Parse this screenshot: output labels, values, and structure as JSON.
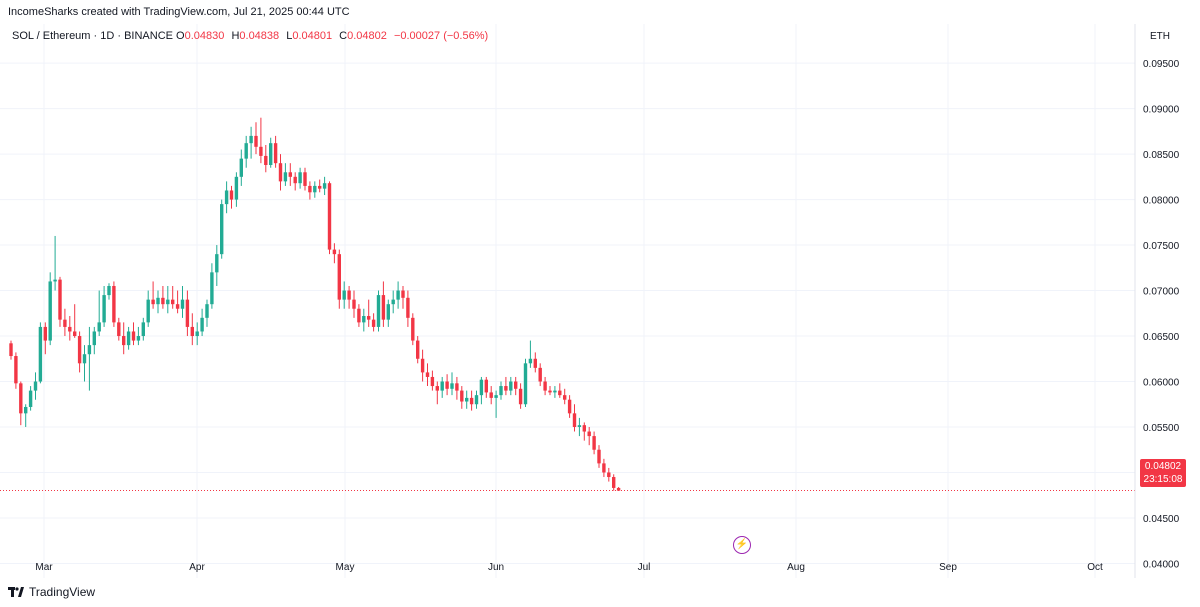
{
  "attribution": "IncomeSharks created with TradingView.com, Jul 21, 2025 00:44 UTC",
  "legend": {
    "symbol": "SOL / Ethereum · 1D · BINANCE",
    "open_key": "O",
    "open": "0.04830",
    "high_key": "H",
    "high": "0.04838",
    "low_key": "L",
    "low": "0.04801",
    "close_key": "C",
    "close": "0.04802",
    "change": "−0.00027 (−0.56%)"
  },
  "currency": "ETH",
  "price_tag": {
    "price": "0.04802",
    "countdown": "23:15:08"
  },
  "brand": "TradingView",
  "colors": {
    "up": "#22ab94",
    "down": "#f23645",
    "grid": "#f0f3fa",
    "event": "#9c27b0"
  },
  "chart_data": {
    "type": "candlestick",
    "y_ticks": [
      "0.09500",
      "0.09000",
      "0.08500",
      "0.08000",
      "0.07500",
      "0.07000",
      "0.06500",
      "0.06000",
      "0.05500",
      "0.05000",
      "0.04500",
      "0.04000"
    ],
    "x_ticks": [
      "Mar",
      "Apr",
      "May",
      "Jun",
      "Jul",
      "Aug",
      "Sep",
      "Oct"
    ],
    "ylim": [
      0.0384,
      0.0993
    ],
    "last_price": 0.04802,
    "candles": [
      [
        0.0642,
        0.0645,
        0.0624,
        0.0628
      ],
      [
        0.0628,
        0.0632,
        0.0592,
        0.0598
      ],
      [
        0.0598,
        0.06,
        0.0552,
        0.0565
      ],
      [
        0.0565,
        0.0575,
        0.055,
        0.0572
      ],
      [
        0.0572,
        0.0595,
        0.0568,
        0.059
      ],
      [
        0.059,
        0.061,
        0.058,
        0.06
      ],
      [
        0.06,
        0.0665,
        0.0598,
        0.066
      ],
      [
        0.066,
        0.0665,
        0.063,
        0.0645
      ],
      [
        0.0645,
        0.072,
        0.064,
        0.071
      ],
      [
        0.071,
        0.076,
        0.07,
        0.0712
      ],
      [
        0.0712,
        0.0715,
        0.066,
        0.0668
      ],
      [
        0.0668,
        0.068,
        0.065,
        0.066
      ],
      [
        0.066,
        0.0672,
        0.0645,
        0.0655
      ],
      [
        0.0655,
        0.0685,
        0.0648,
        0.065
      ],
      [
        0.065,
        0.0655,
        0.061,
        0.062
      ],
      [
        0.062,
        0.064,
        0.06,
        0.063
      ],
      [
        0.063,
        0.066,
        0.059,
        0.064
      ],
      [
        0.064,
        0.066,
        0.063,
        0.0655
      ],
      [
        0.0655,
        0.07,
        0.065,
        0.0665
      ],
      [
        0.0665,
        0.0705,
        0.066,
        0.0695
      ],
      [
        0.0695,
        0.0708,
        0.069,
        0.0705
      ],
      [
        0.0705,
        0.071,
        0.066,
        0.0665
      ],
      [
        0.0665,
        0.067,
        0.0645,
        0.065
      ],
      [
        0.065,
        0.0665,
        0.063,
        0.064
      ],
      [
        0.064,
        0.066,
        0.0635,
        0.0655
      ],
      [
        0.0655,
        0.0665,
        0.064,
        0.0645
      ],
      [
        0.0645,
        0.066,
        0.064,
        0.065
      ],
      [
        0.065,
        0.067,
        0.0645,
        0.0665
      ],
      [
        0.0665,
        0.07,
        0.066,
        0.069
      ],
      [
        0.069,
        0.071,
        0.068,
        0.0685
      ],
      [
        0.0685,
        0.07,
        0.0675,
        0.0692
      ],
      [
        0.0692,
        0.0705,
        0.068,
        0.0685
      ],
      [
        0.0685,
        0.0705,
        0.0675,
        0.069
      ],
      [
        0.069,
        0.0705,
        0.068,
        0.0685
      ],
      [
        0.0685,
        0.07,
        0.0675,
        0.068
      ],
      [
        0.068,
        0.0705,
        0.067,
        0.069
      ],
      [
        0.069,
        0.07,
        0.065,
        0.066
      ],
      [
        0.066,
        0.0675,
        0.064,
        0.065
      ],
      [
        0.065,
        0.0665,
        0.064,
        0.0655
      ],
      [
        0.0655,
        0.068,
        0.065,
        0.067
      ],
      [
        0.067,
        0.069,
        0.066,
        0.0685
      ],
      [
        0.0685,
        0.073,
        0.068,
        0.072
      ],
      [
        0.072,
        0.075,
        0.0705,
        0.074
      ],
      [
        0.074,
        0.08,
        0.0735,
        0.0795
      ],
      [
        0.0795,
        0.082,
        0.0785,
        0.081
      ],
      [
        0.081,
        0.0815,
        0.079,
        0.08
      ],
      [
        0.08,
        0.083,
        0.0792,
        0.0825
      ],
      [
        0.0825,
        0.0855,
        0.0815,
        0.0845
      ],
      [
        0.0845,
        0.087,
        0.0835,
        0.0862
      ],
      [
        0.0862,
        0.088,
        0.0845,
        0.087
      ],
      [
        0.087,
        0.0885,
        0.085,
        0.0858
      ],
      [
        0.0858,
        0.089,
        0.084,
        0.0848
      ],
      [
        0.0848,
        0.086,
        0.083,
        0.0838
      ],
      [
        0.0838,
        0.0868,
        0.0835,
        0.0862
      ],
      [
        0.0862,
        0.087,
        0.0835,
        0.084
      ],
      [
        0.084,
        0.085,
        0.081,
        0.082
      ],
      [
        0.082,
        0.084,
        0.0815,
        0.083
      ],
      [
        0.083,
        0.084,
        0.0815,
        0.0825
      ],
      [
        0.0825,
        0.083,
        0.081,
        0.0818
      ],
      [
        0.0818,
        0.0835,
        0.0812,
        0.083
      ],
      [
        0.083,
        0.0835,
        0.081,
        0.0815
      ],
      [
        0.0815,
        0.082,
        0.08,
        0.0808
      ],
      [
        0.0808,
        0.082,
        0.0802,
        0.0815
      ],
      [
        0.0815,
        0.0822,
        0.0808,
        0.0812
      ],
      [
        0.0812,
        0.0825,
        0.0805,
        0.0818
      ],
      [
        0.0818,
        0.082,
        0.074,
        0.0745
      ],
      [
        0.0745,
        0.0752,
        0.073,
        0.074
      ],
      [
        0.074,
        0.0745,
        0.068,
        0.069
      ],
      [
        0.069,
        0.071,
        0.068,
        0.07
      ],
      [
        0.07,
        0.0705,
        0.068,
        0.069
      ],
      [
        0.069,
        0.07,
        0.067,
        0.068
      ],
      [
        0.068,
        0.0685,
        0.066,
        0.0665
      ],
      [
        0.0665,
        0.068,
        0.0655,
        0.0672
      ],
      [
        0.0672,
        0.069,
        0.066,
        0.0668
      ],
      [
        0.0668,
        0.0675,
        0.0655,
        0.066
      ],
      [
        0.066,
        0.07,
        0.0655,
        0.0695
      ],
      [
        0.0695,
        0.071,
        0.066,
        0.0668
      ],
      [
        0.0668,
        0.069,
        0.066,
        0.0685
      ],
      [
        0.0685,
        0.07,
        0.0675,
        0.069
      ],
      [
        0.069,
        0.071,
        0.068,
        0.07
      ],
      [
        0.07,
        0.0705,
        0.068,
        0.0692
      ],
      [
        0.0692,
        0.07,
        0.066,
        0.067
      ],
      [
        0.067,
        0.0675,
        0.064,
        0.0645
      ],
      [
        0.0645,
        0.065,
        0.062,
        0.0625
      ],
      [
        0.0625,
        0.0635,
        0.06,
        0.061
      ],
      [
        0.061,
        0.062,
        0.0595,
        0.0605
      ],
      [
        0.0605,
        0.0612,
        0.059,
        0.0595
      ],
      [
        0.0595,
        0.06,
        0.0575,
        0.059
      ],
      [
        0.059,
        0.0605,
        0.0582,
        0.06
      ],
      [
        0.06,
        0.0608,
        0.0585,
        0.0592
      ],
      [
        0.0592,
        0.061,
        0.0585,
        0.0598
      ],
      [
        0.0598,
        0.0605,
        0.058,
        0.059
      ],
      [
        0.059,
        0.0595,
        0.057,
        0.0578
      ],
      [
        0.0578,
        0.059,
        0.057,
        0.0582
      ],
      [
        0.0582,
        0.059,
        0.0568,
        0.0575
      ],
      [
        0.0575,
        0.059,
        0.057,
        0.0585
      ],
      [
        0.0585,
        0.0605,
        0.0575,
        0.0602
      ],
      [
        0.0602,
        0.0605,
        0.0582,
        0.0588
      ],
      [
        0.0588,
        0.0595,
        0.0575,
        0.0582
      ],
      [
        0.0582,
        0.059,
        0.056,
        0.0585
      ],
      [
        0.0585,
        0.06,
        0.058,
        0.0595
      ],
      [
        0.0595,
        0.0605,
        0.0585,
        0.059
      ],
      [
        0.059,
        0.0605,
        0.0585,
        0.06
      ],
      [
        0.06,
        0.0605,
        0.0585,
        0.0592
      ],
      [
        0.0592,
        0.0598,
        0.057,
        0.0575
      ],
      [
        0.0575,
        0.0625,
        0.0572,
        0.062
      ],
      [
        0.062,
        0.0645,
        0.0615,
        0.0625
      ],
      [
        0.0625,
        0.0632,
        0.061,
        0.0615
      ],
      [
        0.0615,
        0.062,
        0.0595,
        0.06
      ],
      [
        0.06,
        0.0605,
        0.0585,
        0.059
      ],
      [
        0.059,
        0.0595,
        0.0585,
        0.0588
      ],
      [
        0.0588,
        0.0595,
        0.0582,
        0.059
      ],
      [
        0.059,
        0.0598,
        0.0582,
        0.0585
      ],
      [
        0.0585,
        0.0592,
        0.0575,
        0.058
      ],
      [
        0.058,
        0.0585,
        0.056,
        0.0565
      ],
      [
        0.0565,
        0.0575,
        0.0545,
        0.055
      ],
      [
        0.055,
        0.056,
        0.054,
        0.0552
      ],
      [
        0.0552,
        0.0555,
        0.0535,
        0.0545
      ],
      [
        0.0545,
        0.055,
        0.053,
        0.054
      ],
      [
        0.054,
        0.0545,
        0.052,
        0.0525
      ],
      [
        0.0525,
        0.053,
        0.0505,
        0.051
      ],
      [
        0.051,
        0.0515,
        0.0495,
        0.05
      ],
      [
        0.05,
        0.0505,
        0.049,
        0.0495
      ],
      [
        0.0495,
        0.0498,
        0.048,
        0.0483
      ],
      [
        0.0483,
        0.0484,
        0.048,
        0.048
      ]
    ]
  }
}
